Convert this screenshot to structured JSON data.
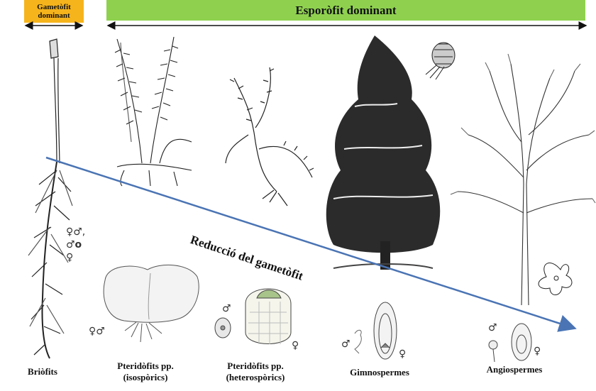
{
  "header": {
    "gametophyte_line1": "Gametòfit",
    "gametophyte_line2": "dominant",
    "sporophyte": "Esporòfit dominant"
  },
  "arrow_label": "Reducció del gametòfit",
  "groups": [
    {
      "line1": "Briòfits",
      "line2": ""
    },
    {
      "line1": "Pteridòfits pp.",
      "line2": "(isospòrics)"
    },
    {
      "line1": "Pteridòfits pp.",
      "line2": "(heterospòrics)"
    },
    {
      "line1": "Gimnospermes",
      "line2": ""
    },
    {
      "line1": "Angiospermes",
      "line2": ""
    }
  ],
  "symbols": {
    "bryo_1": "♀♂,",
    "bryo_2": "♂o",
    "bryo_3": "♀",
    "iso": "♀♂",
    "het_male": "♂",
    "het_female": "♀",
    "gym_male": "♂",
    "gym_female": "♀",
    "ang_male": "♂",
    "ang_female": "♀"
  },
  "colors": {
    "gametophyte_box": "#f6b41c",
    "sporophyte_box": "#8fd14f",
    "reduction_arrow": "#4a74b4"
  }
}
